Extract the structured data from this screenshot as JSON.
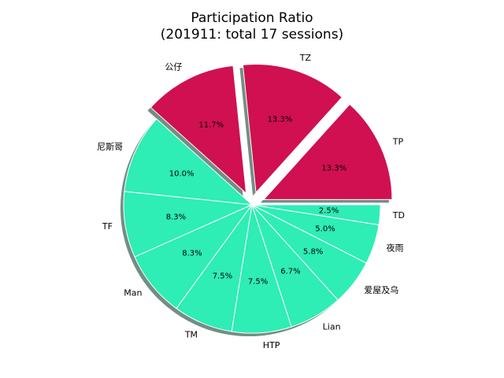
{
  "chart_data": {
    "type": "pie",
    "title": "Participation Ratio",
    "subtitle": "(201911: total 17 sessions)",
    "labels": [
      "TP",
      "TZ",
      "公仔",
      "尼斯哥",
      "TF",
      "Man",
      "TM",
      "HTP",
      "Lian",
      "爱屋及乌",
      "夜雨",
      "TD"
    ],
    "values": [
      13.3,
      13.3,
      11.7,
      10.0,
      8.3,
      8.3,
      7.5,
      7.5,
      6.7,
      5.8,
      5.0,
      2.5
    ],
    "value_labels": [
      "13.3%",
      "13.3%",
      "11.7%",
      "10.0%",
      "8.3%",
      "8.3%",
      "7.5%",
      "7.5%",
      "6.7%",
      "5.8%",
      "5.0%",
      "2.5%"
    ],
    "exploded": [
      true,
      true,
      true,
      false,
      false,
      false,
      false,
      false,
      false,
      false,
      false,
      false
    ],
    "colors": {
      "highlight": "#d01050",
      "default": "#2eedb5",
      "edge": "#ffffff",
      "shadow": "#5a7a70"
    },
    "start_angle_deg": 0,
    "direction": "counterclockwise",
    "shadow": true
  }
}
